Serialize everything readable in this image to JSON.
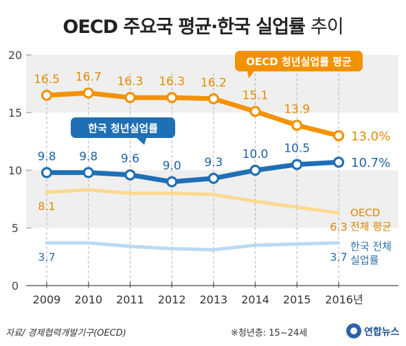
{
  "chart_data": {
    "type": "line",
    "title_main": "OECD 주요국 평균·한국 실업률",
    "title_suffix": "추이",
    "categories": [
      "2009",
      "2010",
      "2011",
      "2012",
      "2013",
      "2014",
      "2015",
      "2016년"
    ],
    "ylim": [
      0,
      20
    ],
    "yticks": [
      0,
      5,
      10,
      15,
      20
    ],
    "series": [
      {
        "name": "OECD 청년실업률 평균",
        "color": "#f39200",
        "values": [
          16.5,
          16.7,
          16.3,
          16.3,
          16.2,
          15.1,
          13.9,
          13.0
        ],
        "labels": [
          "16.5",
          "16.7",
          "16.3",
          "16.3",
          "16.2",
          "15.1",
          "13.9",
          "13.0%"
        ]
      },
      {
        "name": "한국 청년실업률",
        "color": "#1f6fb5",
        "values": [
          9.8,
          9.8,
          9.6,
          9.0,
          9.3,
          10.0,
          10.5,
          10.7
        ],
        "labels": [
          "9.8",
          "9.8",
          "9.6",
          "9.0",
          "9.3",
          "10.0",
          "10.5",
          "10.7%"
        ]
      },
      {
        "name_lines": [
          "OECD",
          "전체 평균"
        ],
        "color": "#fcd98f",
        "label_color": "#e08600",
        "values": [
          8.1,
          8.3,
          8.0,
          8.0,
          7.9,
          7.3,
          6.8,
          6.3
        ],
        "first_label": "8.1",
        "last_label": "6.3"
      },
      {
        "name_lines": [
          "한국 전체",
          "실업률"
        ],
        "color": "#bcdaf3",
        "label_color": "#2f6ea8",
        "values": [
          3.7,
          3.7,
          3.4,
          3.2,
          3.1,
          3.5,
          3.6,
          3.7
        ],
        "first_label": "3.7",
        "last_label": "3.7"
      }
    ]
  },
  "footer": {
    "source": "자료/ 경제협력개발기구(OECD)",
    "note": "※청년층: 15~24세",
    "logo_text": "연합뉴스"
  },
  "colors": {
    "band": "#efefef",
    "title": "#222222",
    "axis": "#888888"
  }
}
